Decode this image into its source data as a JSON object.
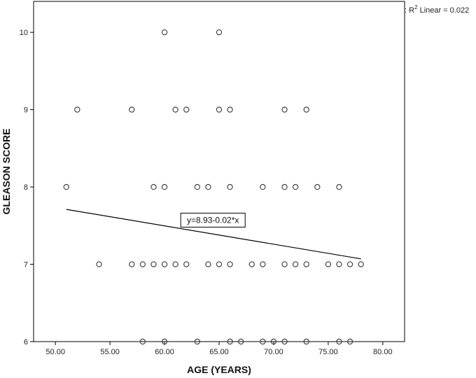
{
  "chart_data": {
    "type": "scatter",
    "xlabel": "AGE (YEARS)",
    "ylabel": "GLEASON SCORE",
    "xlim": [
      48,
      82
    ],
    "ylim": [
      6,
      10.4
    ],
    "x_ticks": [
      "50.00",
      "55.00",
      "60.00",
      "65.00",
      "70.00",
      "75.00",
      "80.00"
    ],
    "x_tick_values": [
      50,
      55,
      60,
      65,
      70,
      75,
      80
    ],
    "y_ticks": [
      "6",
      "7",
      "8",
      "9",
      "10"
    ],
    "y_tick_values": [
      6,
      7,
      8,
      9,
      10
    ],
    "grid": false,
    "legend": {
      "position": "top-right",
      "prefix": ": R",
      "superscript": "2",
      "suffix": " Linear = 0.022"
    },
    "fit_line": {
      "label": "y=8.93-0.02*x",
      "x": [
        51,
        78
      ],
      "y": [
        7.71,
        7.07
      ]
    },
    "points": [
      {
        "x": 60,
        "y": 10
      },
      {
        "x": 65,
        "y": 10
      },
      {
        "x": 52,
        "y": 9
      },
      {
        "x": 57,
        "y": 9
      },
      {
        "x": 61,
        "y": 9
      },
      {
        "x": 62,
        "y": 9
      },
      {
        "x": 65,
        "y": 9
      },
      {
        "x": 66,
        "y": 9
      },
      {
        "x": 71,
        "y": 9
      },
      {
        "x": 73,
        "y": 9
      },
      {
        "x": 51,
        "y": 8
      },
      {
        "x": 59,
        "y": 8
      },
      {
        "x": 60,
        "y": 8
      },
      {
        "x": 63,
        "y": 8
      },
      {
        "x": 64,
        "y": 8
      },
      {
        "x": 66,
        "y": 8
      },
      {
        "x": 69,
        "y": 8
      },
      {
        "x": 71,
        "y": 8
      },
      {
        "x": 72,
        "y": 8
      },
      {
        "x": 74,
        "y": 8
      },
      {
        "x": 76,
        "y": 8
      },
      {
        "x": 54,
        "y": 7
      },
      {
        "x": 57,
        "y": 7
      },
      {
        "x": 58,
        "y": 7
      },
      {
        "x": 59,
        "y": 7
      },
      {
        "x": 60,
        "y": 7
      },
      {
        "x": 61,
        "y": 7
      },
      {
        "x": 62,
        "y": 7
      },
      {
        "x": 64,
        "y": 7
      },
      {
        "x": 65,
        "y": 7
      },
      {
        "x": 66,
        "y": 7
      },
      {
        "x": 68,
        "y": 7
      },
      {
        "x": 69,
        "y": 7
      },
      {
        "x": 71,
        "y": 7
      },
      {
        "x": 72,
        "y": 7
      },
      {
        "x": 73,
        "y": 7
      },
      {
        "x": 75,
        "y": 7
      },
      {
        "x": 76,
        "y": 7
      },
      {
        "x": 77,
        "y": 7
      },
      {
        "x": 78,
        "y": 7
      },
      {
        "x": 58,
        "y": 6
      },
      {
        "x": 60,
        "y": 6
      },
      {
        "x": 63,
        "y": 6
      },
      {
        "x": 66,
        "y": 6
      },
      {
        "x": 67,
        "y": 6
      },
      {
        "x": 69,
        "y": 6
      },
      {
        "x": 70,
        "y": 6
      },
      {
        "x": 71,
        "y": 6
      },
      {
        "x": 73,
        "y": 6
      },
      {
        "x": 76,
        "y": 6
      },
      {
        "x": 77,
        "y": 6
      }
    ]
  }
}
